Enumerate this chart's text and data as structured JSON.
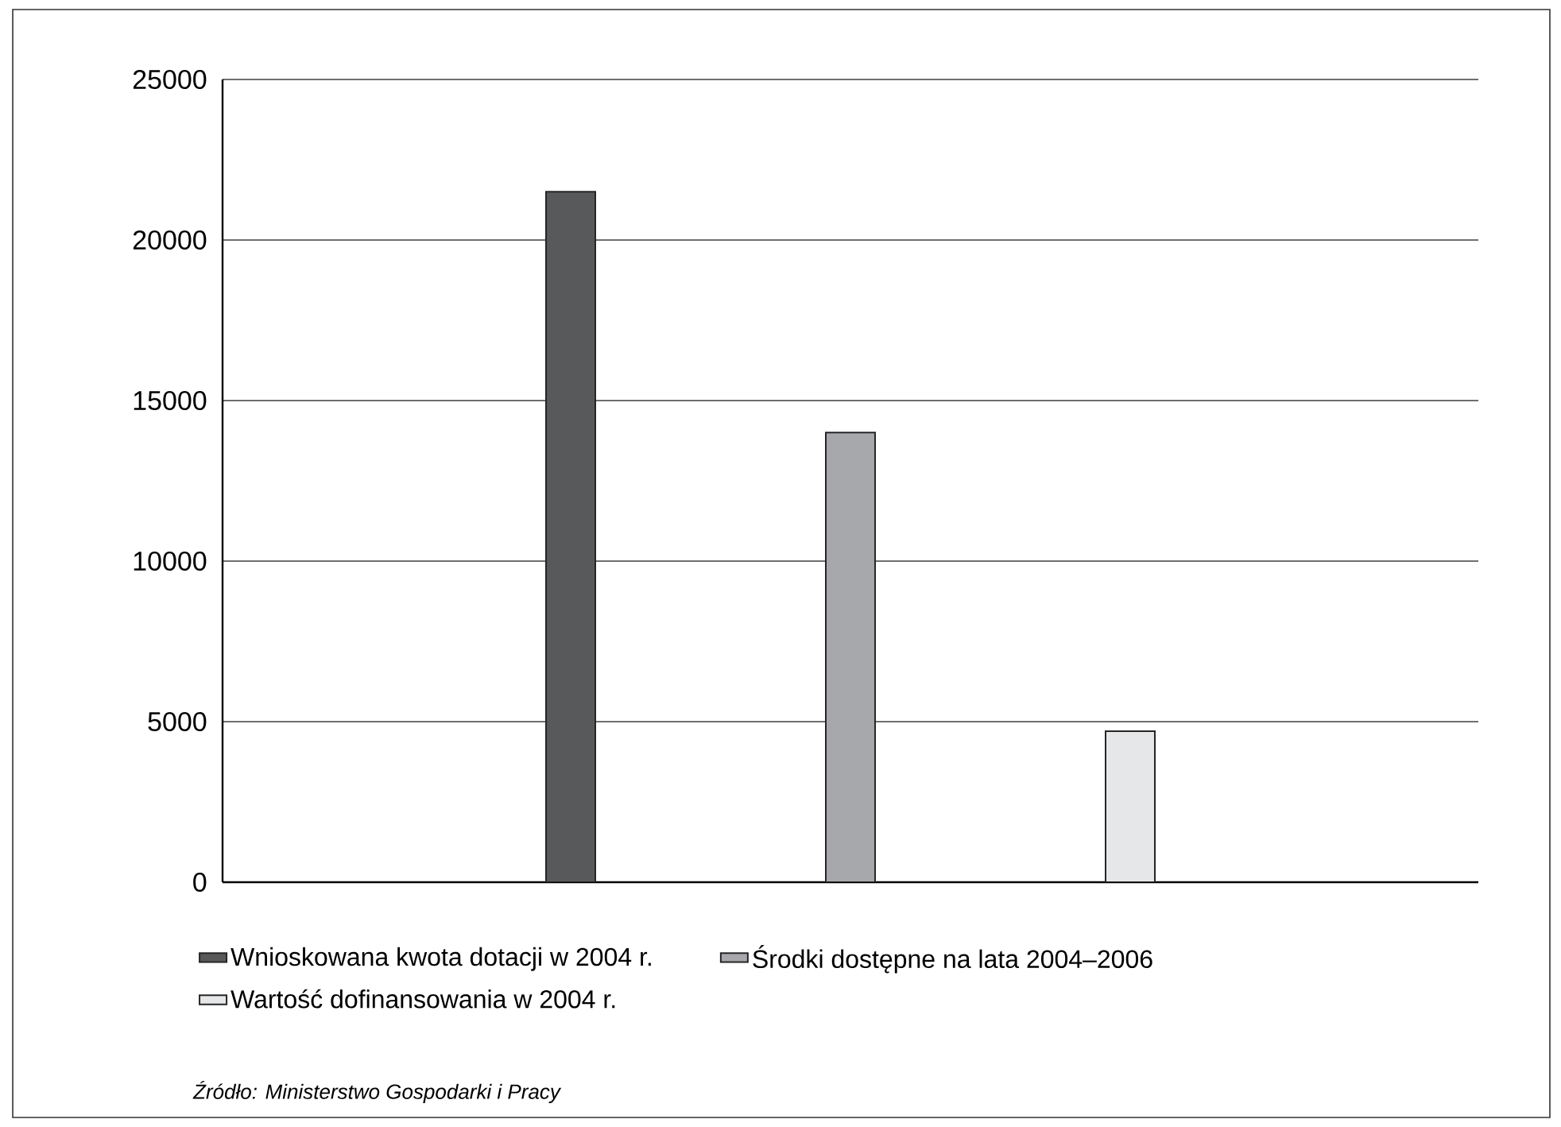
{
  "chart_data": {
    "type": "bar",
    "categories": [
      null
    ],
    "series": [
      {
        "name": "Wnioskowana kwota dotacji w 2004 r.",
        "color": "#58595b",
        "values": [
          21500
        ]
      },
      {
        "name": "Środki dostępne na lata 2004–2006",
        "color": "#a7a8ab",
        "values": [
          14000
        ]
      },
      {
        "name": "Wartość dofinansowania w 2004 r.",
        "color": "#e6e7e8",
        "values": [
          4700
        ]
      }
    ],
    "ylim": [
      0,
      25000
    ],
    "yticks": [
      0,
      5000,
      10000,
      15000,
      20000,
      25000
    ],
    "grid": "y",
    "legend": "bottom",
    "annotations": [
      "*Źródło: Ministerstwo Gospodarki i Pracy*"
    ]
  }
}
